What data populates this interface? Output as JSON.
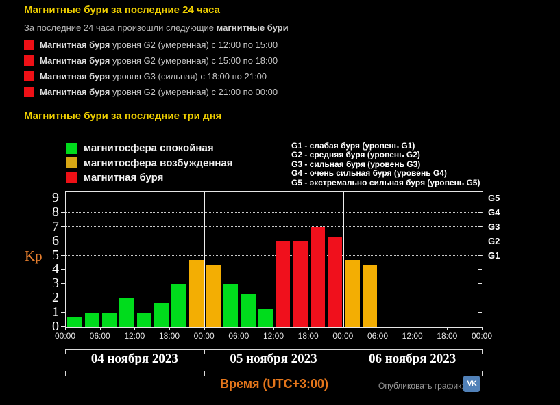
{
  "report24": {
    "title": "Магнитные бури за последние 24 часа",
    "subtitle_prefix": "За последние 24 часа произошли следующие ",
    "subtitle_bold": "магнитные бури",
    "swatch_color": "#EE1016",
    "events": [
      {
        "bold": "Магнитная буря",
        "rest": " уровня G2 (умеренная) с 12:00 по 15:00"
      },
      {
        "bold": "Магнитная буря",
        "rest": " уровня G2 (умеренная) с 15:00 по 18:00"
      },
      {
        "bold": "Магнитная буря",
        "rest": " уровня G3 (сильная) с 18:00 по 21:00"
      },
      {
        "bold": "Магнитная буря",
        "rest": " уровня G2 (умеренная) с 21:00 по 00:00"
      }
    ]
  },
  "report3d": {
    "title": "Магнитные бури за последние три дня"
  },
  "color_legend": [
    {
      "key": "quiet",
      "color": "#00DC1C",
      "label": "магнитосфера спокойная"
    },
    {
      "key": "active",
      "color": "#D7A715",
      "label": "магнитосфера возбужденная"
    },
    {
      "key": "storm",
      "color": "#EE1016",
      "label": "магнитная буря"
    }
  ],
  "g_legend": [
    "G1 - слабая буря (уровень G1)",
    "G2 - средняя буря (уровень G2)",
    "G3 - сильная буря (уровень G3)",
    "G4 - очень сильная буря (уровень G4)",
    "G5 - экстремально сильная буря (уровень G5)"
  ],
  "chart_data": {
    "type": "bar",
    "ylabel": "Kp",
    "ylim": [
      0,
      9
    ],
    "yticks": [
      0,
      1,
      2,
      3,
      4,
      5,
      6,
      7,
      8,
      9
    ],
    "gridlines_at": [
      5,
      6,
      7,
      8,
      9
    ],
    "grid": "dotted horizontal at G-levels only",
    "legend_position": "above-left and above-right",
    "right_axis_labels": [
      {
        "kp": 5,
        "label": "G1"
      },
      {
        "kp": 6,
        "label": "G2"
      },
      {
        "kp": 7,
        "label": "G3"
      },
      {
        "kp": 8,
        "label": "G4"
      },
      {
        "kp": 9,
        "label": "G5"
      }
    ],
    "x_tick_labels": [
      "00:00",
      "06:00",
      "12:00",
      "18:00",
      "00:00",
      "06:00",
      "12:00",
      "18:00",
      "00:00",
      "06:00",
      "12:00",
      "18:00",
      "00:00"
    ],
    "day_labels": [
      "04 ноября 2023",
      "05 ноября 2023",
      "06 ноября 2023"
    ],
    "slots_per_day": 8,
    "bar_colors": {
      "quiet": "#00DC1C",
      "active": "#F3AE03",
      "storm": "#F0101C"
    },
    "bars": [
      {
        "kp": 0.7,
        "status": "quiet"
      },
      {
        "kp": 1.0,
        "status": "quiet"
      },
      {
        "kp": 1.0,
        "status": "quiet"
      },
      {
        "kp": 2.0,
        "status": "quiet"
      },
      {
        "kp": 1.0,
        "status": "quiet"
      },
      {
        "kp": 1.7,
        "status": "quiet"
      },
      {
        "kp": 3.0,
        "status": "quiet"
      },
      {
        "kp": 4.7,
        "status": "active"
      },
      {
        "kp": 4.3,
        "status": "active"
      },
      {
        "kp": 3.0,
        "status": "quiet"
      },
      {
        "kp": 2.3,
        "status": "quiet"
      },
      {
        "kp": 1.3,
        "status": "quiet"
      },
      {
        "kp": 6.0,
        "status": "storm"
      },
      {
        "kp": 6.0,
        "status": "storm"
      },
      {
        "kp": 7.0,
        "status": "storm"
      },
      {
        "kp": 6.3,
        "status": "storm"
      },
      {
        "kp": 4.7,
        "status": "active"
      },
      {
        "kp": 4.3,
        "status": "active"
      },
      {
        "kp": null,
        "status": null
      },
      {
        "kp": null,
        "status": null
      },
      {
        "kp": null,
        "status": null
      },
      {
        "kp": null,
        "status": null
      },
      {
        "kp": null,
        "status": null
      },
      {
        "kp": null,
        "status": null
      }
    ]
  },
  "footer": {
    "xlabel": "Время (UTC+3:00)",
    "publish_label": "Опубликовать график:",
    "vk_icon_label": "VK",
    "vk_color": "#5181B8"
  }
}
